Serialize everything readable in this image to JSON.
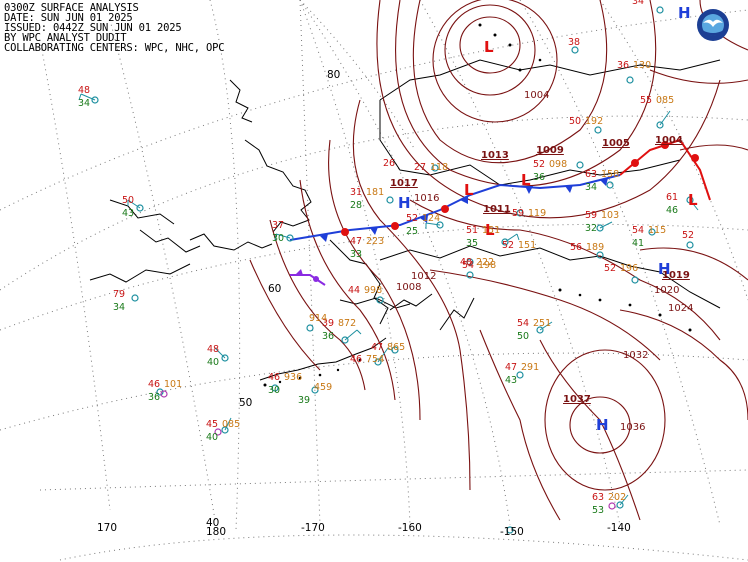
{
  "header": {
    "lines": [
      "0300Z SURFACE ANALYSIS",
      "DATE: SUN JUN 01 2025",
      "ISSUED: 0442Z SUN JUN 01 2025",
      "BY WPC ANALYST DUDIT",
      "COLLABORATING CENTERS: WPC, NHC, OPC"
    ]
  },
  "logo": {
    "name": "noaa-logo-icon",
    "colors": {
      "outer": "#1c3f94",
      "inner": "#5aa7e0",
      "bird": "#ffffff"
    }
  },
  "colors": {
    "isobar": "#7a1212",
    "warm_front": "#e01010",
    "cold_front": "#1f3fd8",
    "occluded": "#8a2be2",
    "high": "#1f3fd8",
    "low": "#e01010",
    "temp": "#c81414",
    "dewpoint": "#1a7a1a",
    "pressure": "#c87814",
    "station": "#1e90a0",
    "grid": "#7a7a7a",
    "coast": "#000000"
  },
  "grid_labels": [
    {
      "text": "80"
    },
    {
      "text": "60"
    },
    {
      "text": "50"
    },
    {
      "text": "40"
    },
    {
      "text": "170"
    },
    {
      "text": "180"
    },
    {
      "text": "-170"
    },
    {
      "text": "-160"
    },
    {
      "text": "-150"
    },
    {
      "text": "-140"
    }
  ],
  "isobar_labels": [
    {
      "text": "1016"
    },
    {
      "text": "1012"
    },
    {
      "text": "1008"
    },
    {
      "text": "1004"
    },
    {
      "text": "1024"
    },
    {
      "text": "1020"
    },
    {
      "text": "1032"
    },
    {
      "text": "1036"
    }
  ],
  "pressure_centers": [
    {
      "type": "H",
      "value": "1017"
    },
    {
      "type": "H",
      "value": "1037"
    },
    {
      "type": "H",
      "value": "1019"
    },
    {
      "type": "L",
      "value": "1009"
    },
    {
      "type": "L",
      "value": "1011"
    },
    {
      "type": "L",
      "value": "1013"
    },
    {
      "type": "L",
      "value": "1005"
    },
    {
      "type": "L",
      "value": "1004"
    }
  ],
  "stations": [
    {
      "t": "48",
      "d": "34",
      "p": ""
    },
    {
      "t": "50",
      "d": "43",
      "p": ""
    },
    {
      "t": "79",
      "d": "34",
      "p": ""
    },
    {
      "t": "37",
      "d": "30",
      "p": ""
    },
    {
      "t": "31",
      "d": "28",
      "p": "181"
    },
    {
      "t": "26",
      "d": "",
      "p": ""
    },
    {
      "t": "27",
      "d": "",
      "p": "118"
    },
    {
      "t": "52",
      "d": "25",
      "p": "124"
    },
    {
      "t": "47",
      "d": "33",
      "p": "223"
    },
    {
      "t": "51",
      "d": "35",
      "p": "151"
    },
    {
      "t": "52",
      "d": "",
      "p": "151"
    },
    {
      "t": "59",
      "d": "",
      "p": "119"
    },
    {
      "t": "52",
      "d": "36",
      "p": "098"
    },
    {
      "t": "63",
      "d": "34",
      "p": "158"
    },
    {
      "t": "59",
      "d": "32",
      "p": "103"
    },
    {
      "t": "54",
      "d": "41",
      "p": "115"
    },
    {
      "t": "52",
      "d": "",
      "p": "196"
    },
    {
      "t": "56",
      "d": "",
      "p": "189"
    },
    {
      "t": "54",
      "d": "",
      "p": "198"
    },
    {
      "t": "48",
      "d": "",
      "p": "222"
    },
    {
      "t": "44",
      "d": "",
      "p": "998"
    },
    {
      "t": "39",
      "d": "36",
      "p": "872"
    },
    {
      "t": "",
      "d": "",
      "p": "914"
    },
    {
      "t": "47",
      "d": "",
      "p": "865"
    },
    {
      "t": "46",
      "d": "",
      "p": "754"
    },
    {
      "t": "54",
      "d": "50",
      "p": "251"
    },
    {
      "t": "47",
      "d": "43",
      "p": "291"
    },
    {
      "t": "48",
      "d": "40",
      "p": ""
    },
    {
      "t": "46",
      "d": "36",
      "p": "101"
    },
    {
      "t": "45",
      "d": "40",
      "p": "085"
    },
    {
      "t": "46",
      "d": "30",
      "p": "936"
    },
    {
      "t": "",
      "d": "39",
      "p": "459"
    },
    {
      "t": "63",
      "d": "53",
      "p": "202"
    },
    {
      "t": "50",
      "d": "",
      "p": "192"
    },
    {
      "t": "36",
      "d": "",
      "p": "130"
    },
    {
      "t": "55",
      "d": "",
      "p": "085"
    },
    {
      "t": "61",
      "d": "46",
      "p": ""
    },
    {
      "t": "52",
      "d": "",
      "p": ""
    },
    {
      "t": "34",
      "d": "",
      "p": ""
    },
    {
      "t": "38",
      "d": "",
      "p": ""
    }
  ]
}
